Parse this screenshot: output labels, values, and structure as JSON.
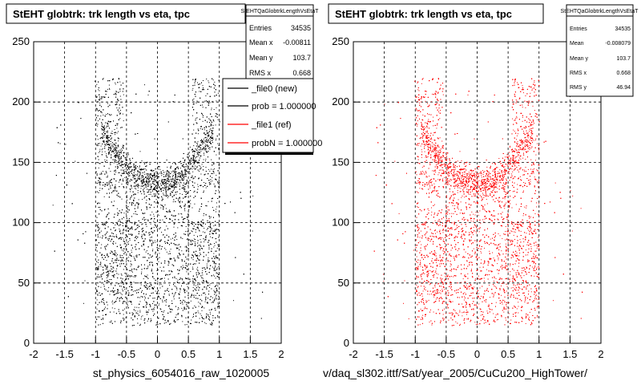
{
  "chart_data": [
    {
      "type": "scatter",
      "title": "StEHT globtrk: trk length vs eta, tpc",
      "xlabel": "st_physics_6054016_raw_1020005",
      "ylabel": "",
      "xlim": [
        -2,
        2
      ],
      "ylim": [
        0,
        250
      ],
      "x_ticks": [
        "-2",
        "-1.5",
        "-1",
        "-0.5",
        "0",
        "0.5",
        "1",
        "1.5",
        "2"
      ],
      "y_ticks": [
        "0",
        "50",
        "100",
        "150",
        "200",
        "250"
      ],
      "grid": true,
      "color": "#000000",
      "stats": {
        "header": "StEHTQaGlobtrkLengthVsEtaT",
        "rows": [
          {
            "label": "Entries",
            "value": "34535"
          },
          {
            "label": "Mean x",
            "value": "-0.00811"
          },
          {
            "label": "Mean y",
            "value": "103.7"
          },
          {
            "label": "RMS x",
            "value": "0.668"
          }
        ]
      },
      "legend": [
        {
          "label": "_file0 (new)",
          "color": "#000000"
        },
        {
          "label": "prob = 1.000000",
          "color": "#000000"
        },
        {
          "label": "_file1 (ref)",
          "color": "#ff0000"
        },
        {
          "label": "probN = 1.000000",
          "color": "#ff0000"
        }
      ]
    },
    {
      "type": "scatter",
      "title": "StEHT globtrk: trk length vs eta, tpc",
      "xlabel": "v/daq_sl302.ittf/Sat/year_2005/CuCu200_HighTower/",
      "ylabel": "",
      "xlim": [
        -2,
        2
      ],
      "ylim": [
        0,
        250
      ],
      "x_ticks": [
        "-2",
        "-1.5",
        "-1",
        "-0.5",
        "0",
        "0.5",
        "1",
        "1.5",
        "2"
      ],
      "y_ticks": [
        "0",
        "50",
        "100",
        "150",
        "200",
        "250"
      ],
      "grid": true,
      "color": "#ff0000",
      "stats": {
        "header": "StEHTQaGlobtrkLengthVsEtaT",
        "rows": [
          {
            "label": "Entries",
            "value": "34535"
          },
          {
            "label": "Mean",
            "value": "-0.008079"
          },
          {
            "label": "Mean y",
            "value": "103.7"
          },
          {
            "label": "RMS x",
            "value": "0.668"
          },
          {
            "label": "RMS y",
            "value": "46.94"
          }
        ]
      }
    }
  ]
}
